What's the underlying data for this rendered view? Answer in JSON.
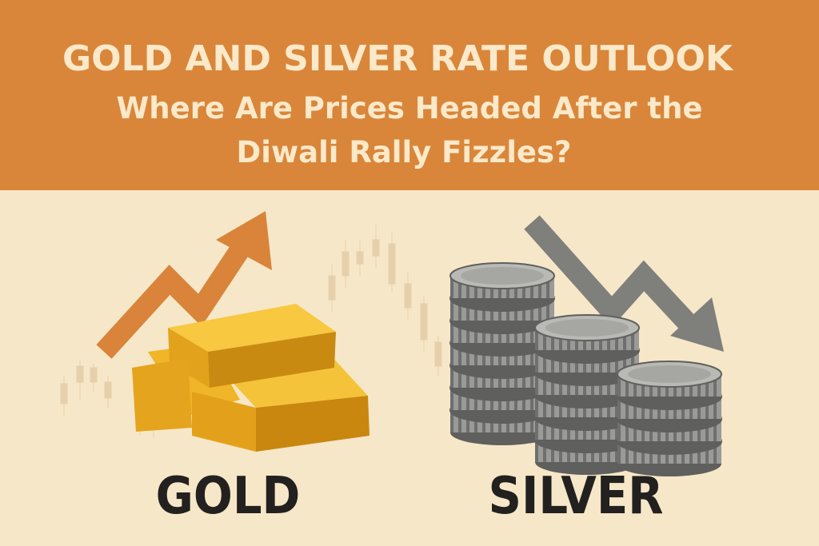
{
  "header": {
    "title": "GOLD AND SILVER RATE OUTLOOK",
    "subtitle_lines": [
      "Where Are Prices Headed After the",
      "Diwali Rally Fizzles?"
    ]
  },
  "labels": {
    "gold": "GOLD",
    "silver": "SILVER"
  }
}
